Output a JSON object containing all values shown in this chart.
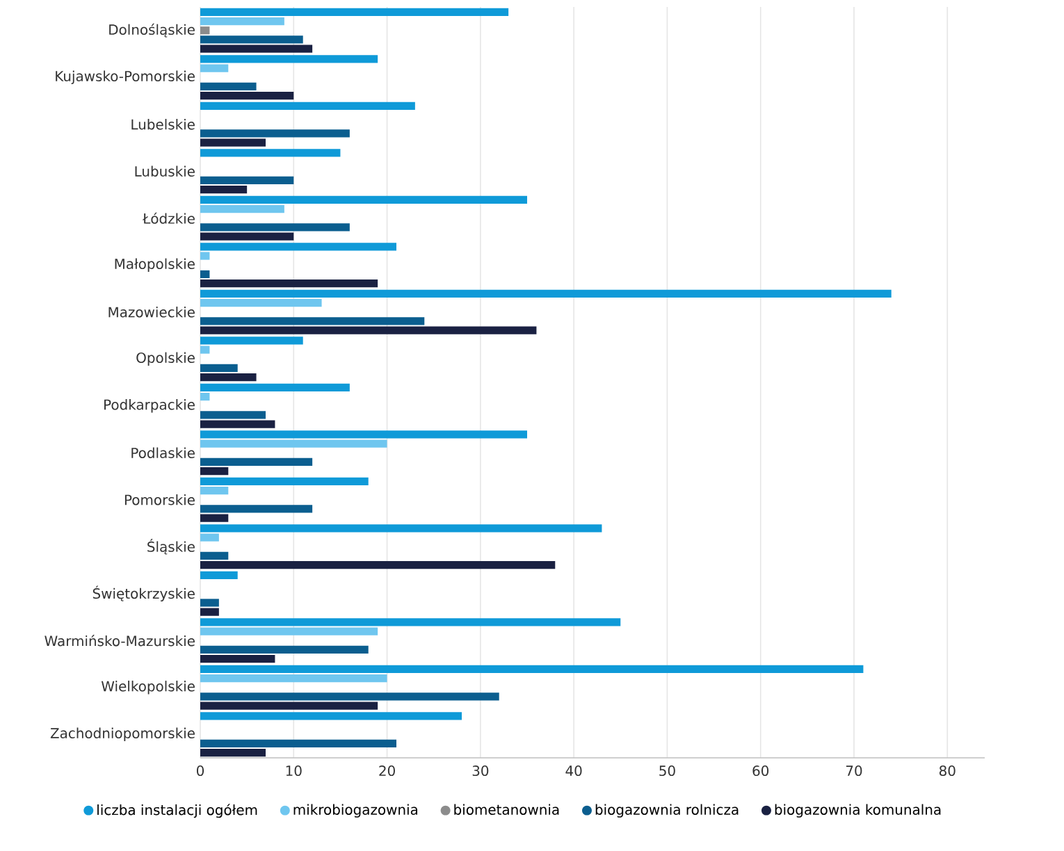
{
  "chart_data": {
    "type": "bar",
    "orientation": "horizontal",
    "categories": [
      "Dolnośląskie",
      "Kujawsko-Pomorskie",
      "Lubelskie",
      "Lubuskie",
      "Łódzkie",
      "Małopolskie",
      "Mazowieckie",
      "Opolskie",
      "Podkarpackie",
      "Podlaskie",
      "Pomorskie",
      "Śląskie",
      "Świętokrzyskie",
      "Warmińsko-Mazurskie",
      "Wielkopolskie",
      "Zachodniopomorskie"
    ],
    "series": [
      {
        "name": "liczba instalacji ogółem",
        "color": "#0f9ad8",
        "values": [
          33,
          19,
          23,
          15,
          35,
          21,
          74,
          11,
          16,
          35,
          18,
          43,
          4,
          45,
          71,
          28
        ]
      },
      {
        "name": "mikrobiogazownia",
        "color": "#6fc6ef",
        "values": [
          9,
          3,
          0,
          0,
          9,
          1,
          13,
          1,
          1,
          20,
          3,
          2,
          0,
          19,
          20,
          0
        ]
      },
      {
        "name": "biometanownia",
        "color": "#8c8c8c",
        "values": [
          1,
          0,
          0,
          0,
          0,
          0,
          0,
          0,
          0,
          0,
          0,
          0,
          0,
          0,
          0,
          0
        ]
      },
      {
        "name": "biogazownia rolnicza",
        "color": "#0b5e8f",
        "values": [
          11,
          6,
          16,
          10,
          16,
          1,
          24,
          4,
          7,
          12,
          12,
          3,
          2,
          18,
          32,
          21
        ]
      },
      {
        "name": "biogazownia komunalna",
        "color": "#1a2142",
        "values": [
          12,
          10,
          7,
          5,
          10,
          19,
          36,
          6,
          8,
          3,
          3,
          38,
          2,
          8,
          19,
          7
        ]
      }
    ],
    "xlim": [
      0,
      84
    ],
    "xticks": [
      0,
      10,
      20,
      30,
      40,
      50,
      60,
      70,
      80
    ],
    "grid": "x",
    "legend": "bottom",
    "marker": "circle"
  }
}
